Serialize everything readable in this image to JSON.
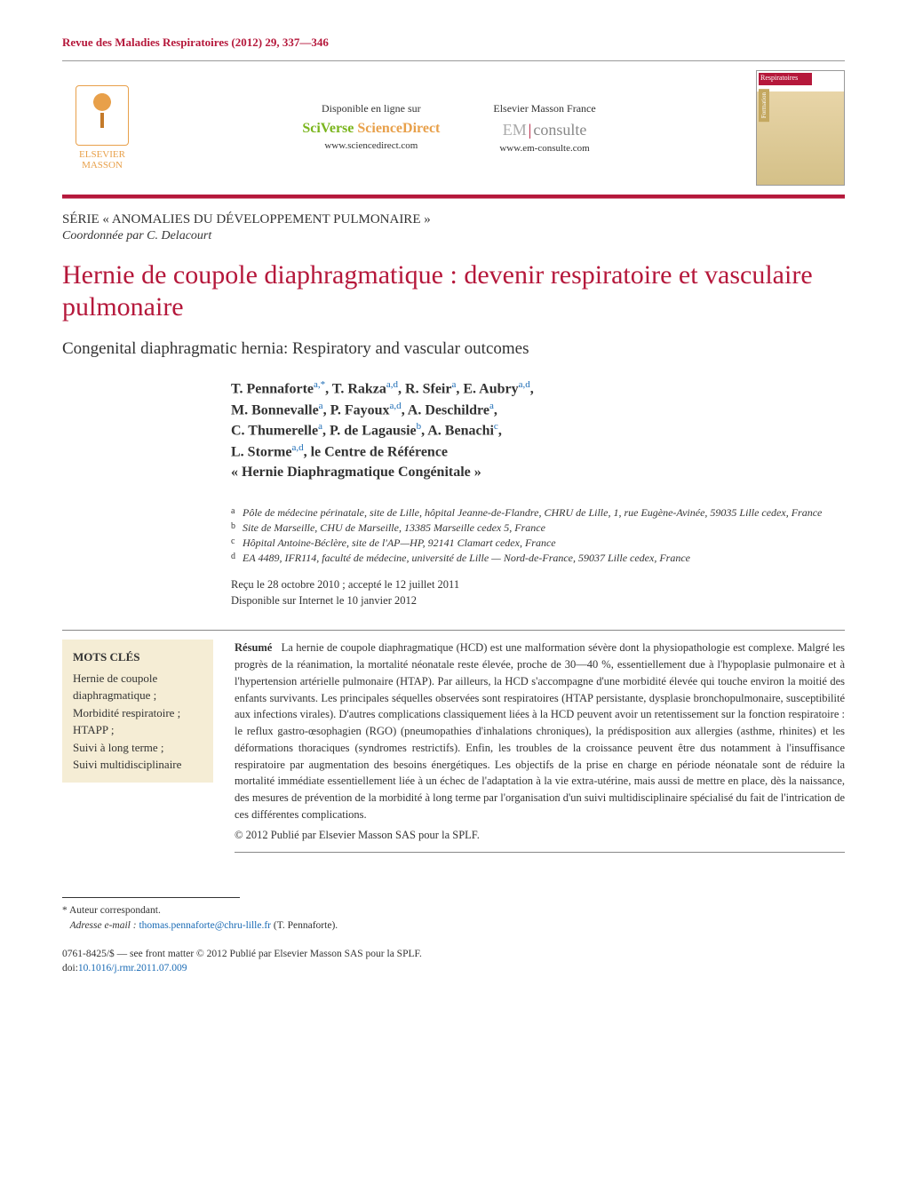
{
  "journal_ref": "Revue des Maladies Respiratoires (2012) 29, 337—346",
  "elsevier": {
    "line1": "ELSEVIER",
    "line2": "MASSON"
  },
  "sciverse": {
    "available": "Disponible en ligne sur",
    "label_sci": "SciVerse",
    "label_sd": " ScienceDirect",
    "url": "www.sciencedirect.com"
  },
  "emconsulte": {
    "available": "Elsevier Masson France",
    "em": "EM",
    "consulte": "consulte",
    "url": "www.em-consulte.com"
  },
  "cover": {
    "title": "Respiratoires",
    "formation": "Formation"
  },
  "series": "SÉRIE « ANOMALIES DU DÉVELOPPEMENT PULMONAIRE »",
  "coord": "Coordonnée par C. Delacourt",
  "title_fr": "Hernie de coupole diaphragmatique : devenir respiratoire et vasculaire pulmonaire",
  "title_en": "Congenital diaphragmatic hernia: Respiratory and vascular outcomes",
  "authors_html": "T. Pennaforte<sup>a,*</sup>, T. Rakza<sup>a,d</sup>, R. Sfeir<sup>a</sup>, E. Aubry<sup>a,d</sup>,<br>M. Bonnevalle<sup>a</sup>, P. Fayoux<sup>a,d</sup>, A. Deschildre<sup>a</sup>,<br>C. Thumerelle<sup>a</sup>, P. de Lagausie<sup>b</sup>, A. Benachi<sup>c</sup>,<br>L. Storme<sup>a,d</sup>, le Centre de Référence<br>« Hernie Diaphragmatique Congénitale »",
  "affiliations": {
    "a": "Pôle de médecine périnatale, site de Lille, hôpital Jeanne-de-Flandre, CHRU de Lille, 1, rue Eugène-Avinée, 59035 Lille cedex, France",
    "b": "Site de Marseille, CHU de Marseille, 13385 Marseille cedex 5, France",
    "c": "Hôpital Antoine-Béclère, site de l'AP—HP, 92141 Clamart cedex, France",
    "d": "EA 4489, IFR114, faculté de médecine, université de Lille — Nord-de-France, 59037 Lille cedex, France"
  },
  "dates": {
    "received": "Reçu le 28 octobre 2010 ; accepté le 12 juillet 2011",
    "online": "Disponible sur Internet le 10 janvier 2012"
  },
  "keywords": {
    "title": "MOTS CLÉS",
    "list": "Hernie de coupole diaphragmatique ;\nMorbidité respiratoire ;\nHTAPP ;\nSuivi à long terme ;\nSuivi multidisciplinaire"
  },
  "abstract": {
    "label": "Résumé",
    "text": "La hernie de coupole diaphragmatique (HCD) est une malformation sévère dont la physiopathologie est complexe. Malgré les progrès de la réanimation, la mortalité néonatale reste élevée, proche de 30—40 %, essentiellement due à l'hypoplasie pulmonaire et à l'hypertension artérielle pulmonaire (HTAP). Par ailleurs, la HCD s'accompagne d'une morbidité élevée qui touche environ la moitié des enfants survivants. Les principales séquelles observées sont respiratoires (HTAP persistante, dysplasie bronchopulmonaire, susceptibilité aux infections virales). D'autres complications classiquement liées à la HCD peuvent avoir un retentissement sur la fonction respiratoire : le reflux gastro-œsophagien (RGO) (pneumopathies d'inhalations chroniques), la prédisposition aux allergies (asthme, rhinites) et les déformations thoraciques (syndromes restrictifs). Enfin, les troubles de la croissance peuvent être dus notamment à l'insuffisance respiratoire par augmentation des besoins énergétiques. Les objectifs de la prise en charge en période néonatale sont de réduire la mortalité immédiate essentiellement liée à un échec de l'adaptation à la vie extra-utérine, mais aussi de mettre en place, dès la naissance, des mesures de prévention de la morbidité à long terme par l'organisation d'un suivi multidisciplinaire spécialisé du fait de l'intrication de ces différentes complications.",
    "copyright": "© 2012 Publié par Elsevier Masson SAS pour la SPLF."
  },
  "correspondence": {
    "star": "* Auteur correspondant.",
    "label": "Adresse e-mail :",
    "email": "thomas.pennaforte@chru-lille.fr",
    "tail": " (T. Pennaforte)."
  },
  "doi": {
    "issn": "0761-8425/$ — see front matter © 2012 Publié par Elsevier Masson SAS pour la SPLF.",
    "prefix": "doi:",
    "value": "10.1016/j.rmr.2011.07.009"
  },
  "colors": {
    "brand_red": "#b5183b",
    "link_blue": "#1a6bb5",
    "keywords_bg": "#f5edd5"
  }
}
